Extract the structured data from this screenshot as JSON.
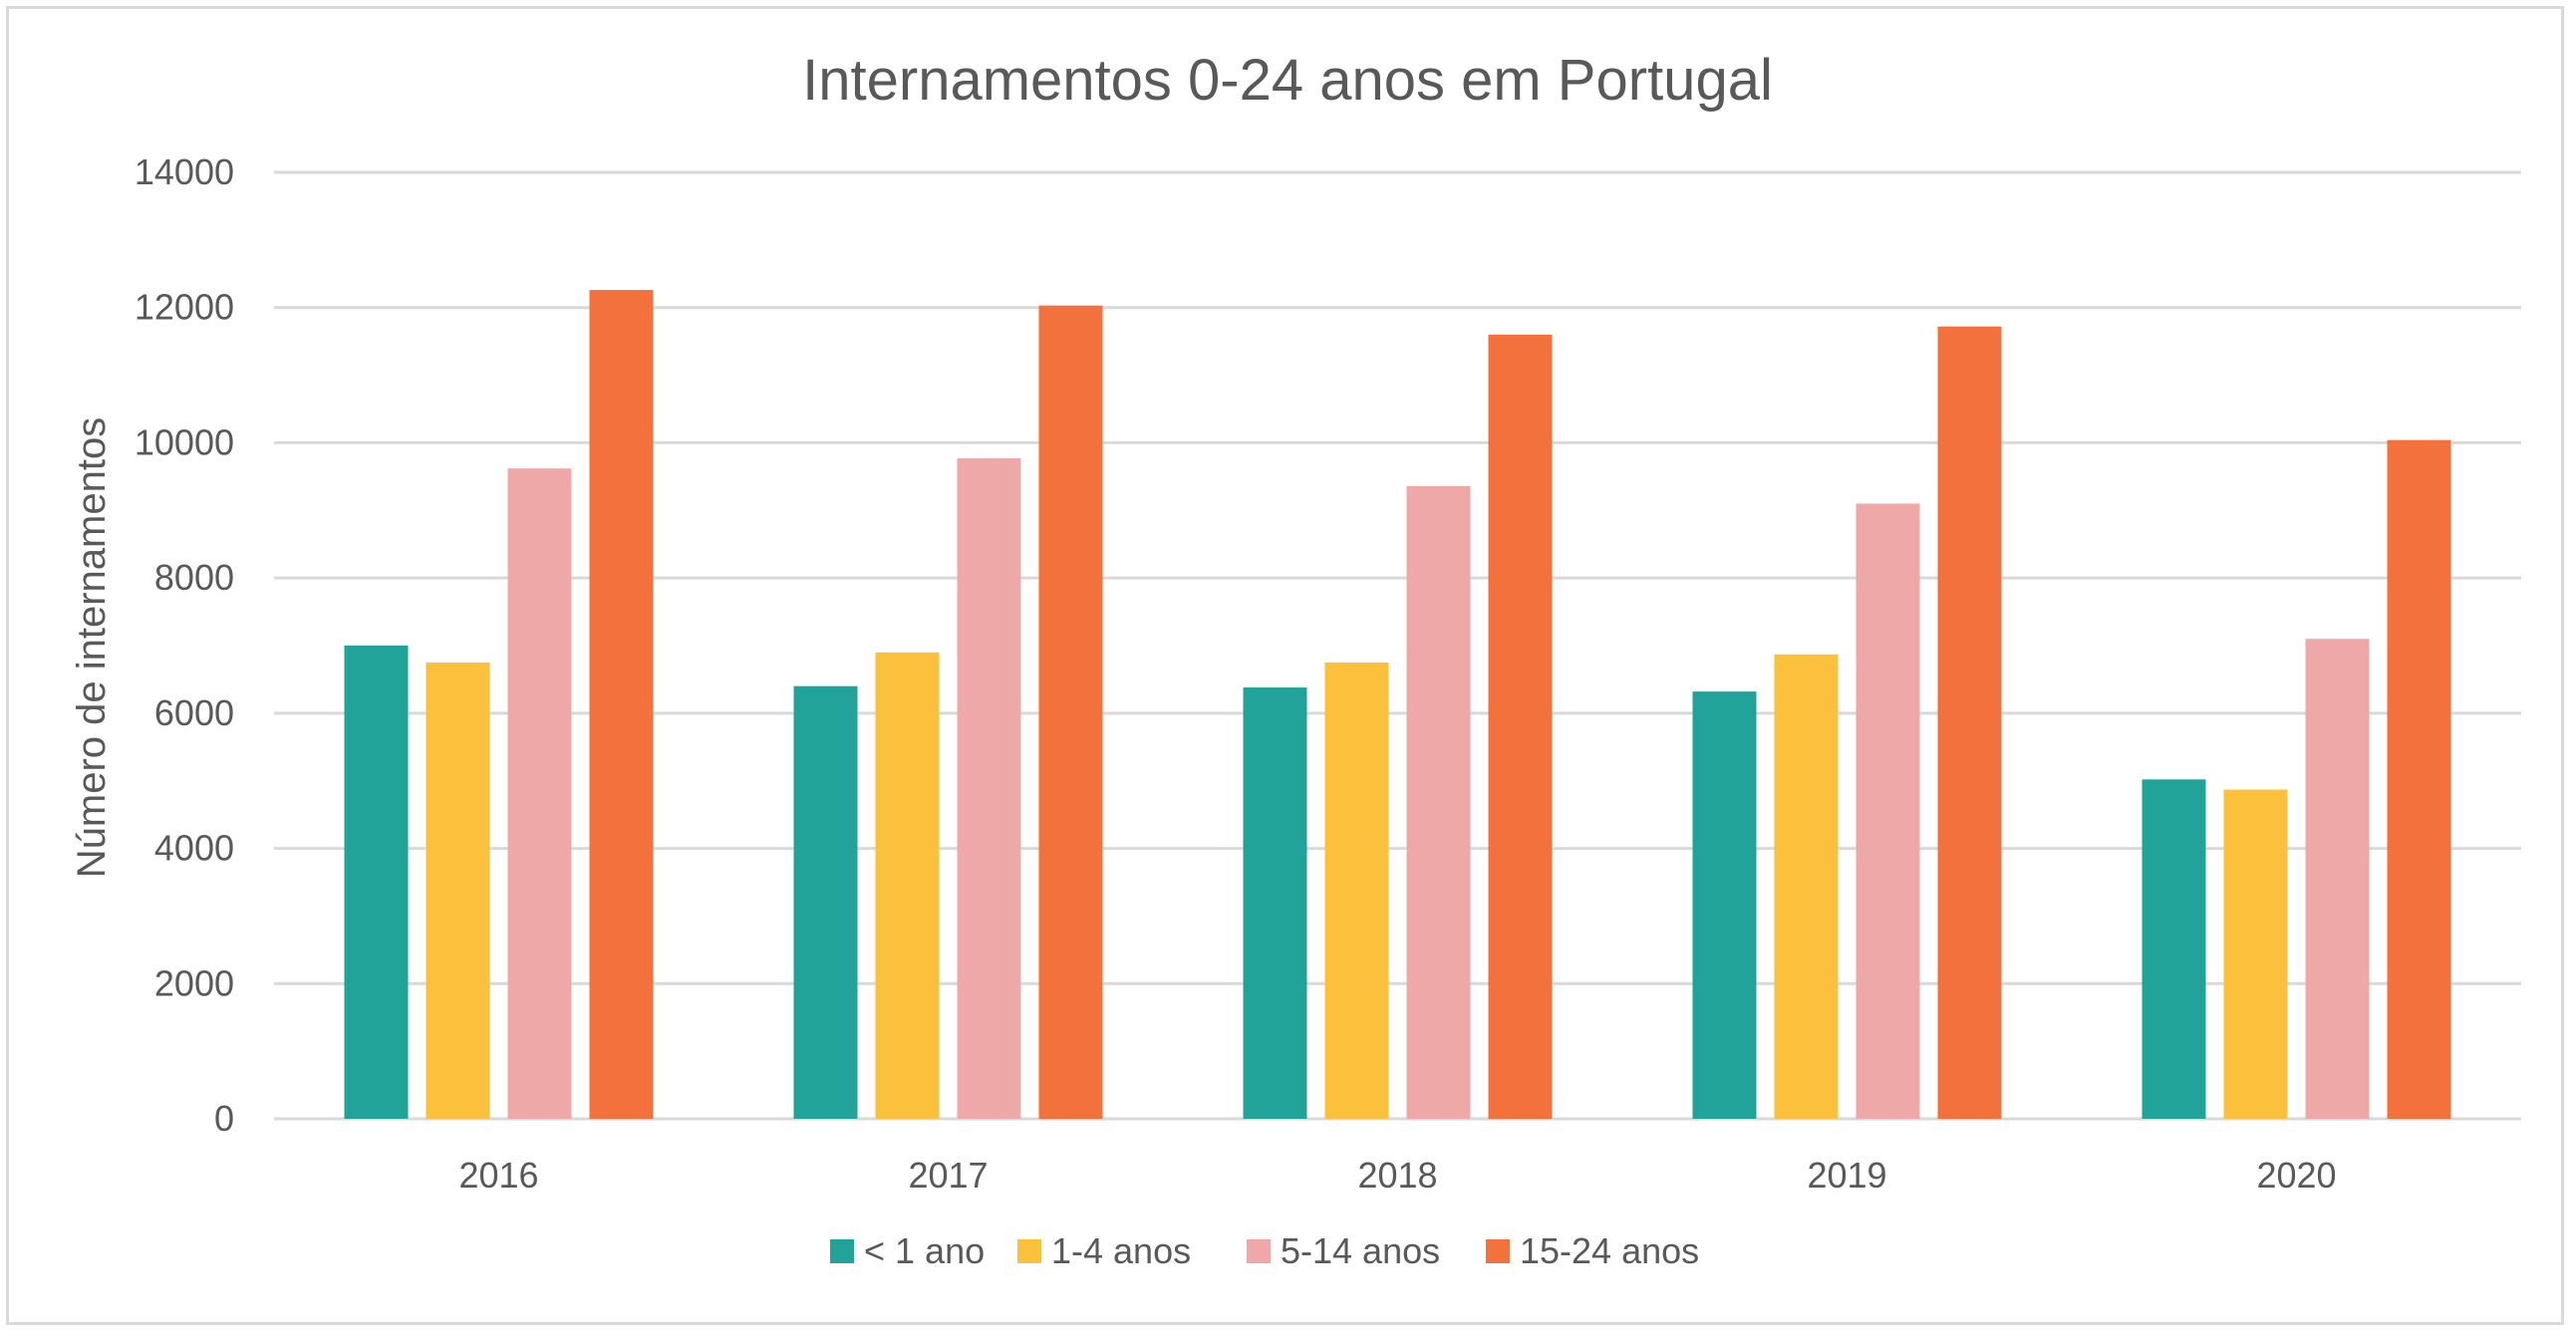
{
  "chart_data": {
    "type": "bar",
    "title": "Internamentos 0-24 anos em Portugal",
    "xlabel": "",
    "ylabel": "Número de internamentos",
    "categories": [
      "2016",
      "2017",
      "2018",
      "2019",
      "2020"
    ],
    "ylim": [
      0,
      14000
    ],
    "yticks": [
      "0",
      "2000",
      "4000",
      "6000",
      "8000",
      "10000",
      "12000",
      "14000"
    ],
    "grid": true,
    "legend_position": "bottom",
    "series": [
      {
        "name": "< 1 ano",
        "color": "#21a39a",
        "values": [
          7000,
          6400,
          6380,
          6320,
          5020
        ]
      },
      {
        "name": "1-4 anos",
        "color": "#fbc13d",
        "values": [
          6750,
          6900,
          6750,
          6870,
          4870
        ]
      },
      {
        "name": "5-14 anos",
        "color": "#efa8a8",
        "values": [
          9620,
          9770,
          9360,
          9100,
          7100
        ]
      },
      {
        "name": "15-24 anos",
        "color": "#f2713c",
        "values": [
          12260,
          12030,
          11600,
          11720,
          10040
        ]
      }
    ]
  }
}
